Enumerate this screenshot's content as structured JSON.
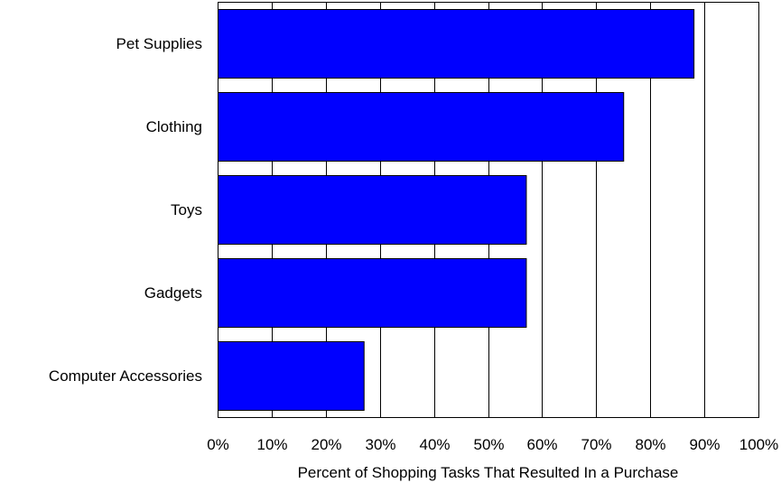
{
  "chart_data": {
    "type": "bar",
    "orientation": "horizontal",
    "categories": [
      "Pet Supplies",
      "Clothing",
      "Toys",
      "Gadgets",
      "Computer Accessories"
    ],
    "values": [
      88,
      75,
      57,
      57,
      27
    ],
    "xlabel": "Percent of Shopping Tasks That Resulted In a Purchase",
    "ylabel": "",
    "xlim": [
      0,
      100
    ],
    "ticks": [
      "0%",
      "10%",
      "20%",
      "30%",
      "40%",
      "50%",
      "60%",
      "70%",
      "80%",
      "90%",
      "100%"
    ],
    "grid": "vertical",
    "legend": "none",
    "bar_color": "#0000ff",
    "grid_color": "#000000"
  }
}
